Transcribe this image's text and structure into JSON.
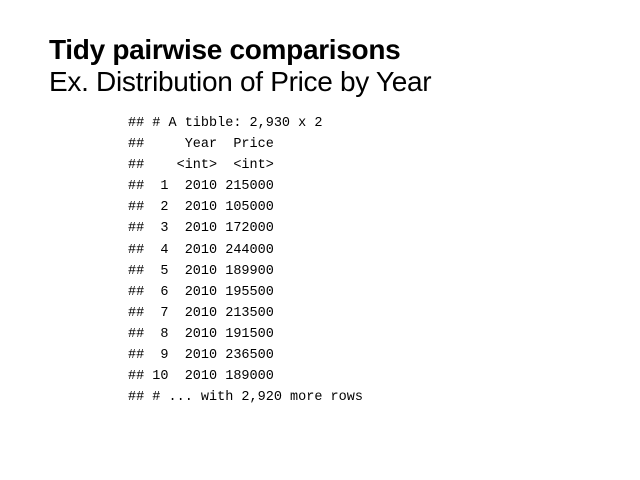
{
  "slide": {
    "title_bold": "Tidy pairwise comparisons",
    "title_regular": "Ex. Distribution of Price by Year"
  },
  "console_output": {
    "lines": [
      "## # A tibble: 2,930 x 2",
      "##     Year  Price",
      "##    <int>  <int>",
      "##  1  2010 215000",
      "##  2  2010 105000",
      "##  3  2010 172000",
      "##  4  2010 244000",
      "##  5  2010 189900",
      "##  6  2010 195500",
      "##  7  2010 213500",
      "##  8  2010 191500",
      "##  9  2010 236500",
      "## 10  2010 189000",
      "## # ... with 2,920 more rows"
    ]
  }
}
